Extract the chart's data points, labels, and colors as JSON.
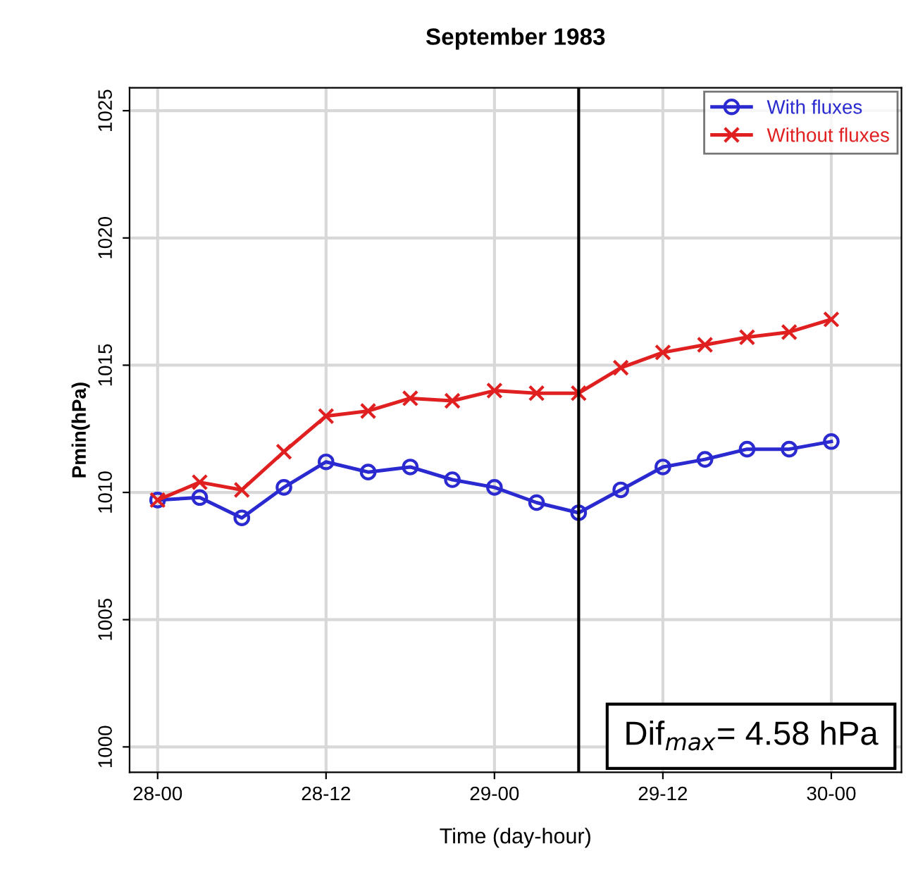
{
  "chart_data": {
    "type": "line",
    "title": "September 1983",
    "xlabel": "Time (day-hour)",
    "ylabel": "Pmin(hPa)",
    "x": [
      "1983-09-28T00:00",
      "1983-09-28T03:00",
      "1983-09-28T06:00",
      "1983-09-28T09:00",
      "1983-09-28T12:00",
      "1983-09-28T15:00",
      "1983-09-28T18:00",
      "1983-09-28T21:00",
      "1983-09-29T00:00",
      "1983-09-29T03:00",
      "1983-09-29T06:00",
      "1983-09-29T09:00",
      "1983-09-29T12:00",
      "1983-09-29T15:00",
      "1983-09-29T18:00",
      "1983-09-29T21:00",
      "1983-09-30T00:00"
    ],
    "series": [
      {
        "name": "With fluxes",
        "color": "#2a2ad0",
        "marker": "circle",
        "values": [
          1009.7,
          1009.8,
          1009.0,
          1010.2,
          1011.2,
          1010.8,
          1011.0,
          1010.5,
          1010.2,
          1009.6,
          1009.2,
          1010.1,
          1011.0,
          1011.3,
          1011.7,
          1011.7,
          1012.0
        ]
      },
      {
        "name": "Without fluxes",
        "color": "#e02020",
        "marker": "cross",
        "values": [
          1009.7,
          1010.4,
          1010.1,
          1011.6,
          1013.0,
          1013.2,
          1013.7,
          1013.6,
          1014.0,
          1013.9,
          1013.9,
          1014.9,
          1015.5,
          1015.8,
          1016.1,
          1016.3,
          1016.8
        ]
      }
    ],
    "xlim": [
      "1983-09-27T22:00",
      "1983-09-30T05:00"
    ],
    "xticks": [
      {
        "value": "1983-09-28T00:00",
        "label": "28-00"
      },
      {
        "value": "1983-09-28T12:00",
        "label": "28-12"
      },
      {
        "value": "1983-09-29T00:00",
        "label": "29-00"
      },
      {
        "value": "1983-09-29T12:00",
        "label": "29-12"
      },
      {
        "value": "1983-09-30T00:00",
        "label": "30-00"
      }
    ],
    "ylim": [
      999,
      1025.9
    ],
    "yticks": [
      1000,
      1005,
      1010,
      1015,
      1020,
      1025
    ],
    "ref_lines": [
      {
        "axis": "x",
        "value": "1983-09-29T06:00",
        "color": "#000000"
      }
    ],
    "annotations": [
      "Dif$_{max}$= 4.58 hPa"
    ],
    "grid": true,
    "legend": "top right"
  }
}
